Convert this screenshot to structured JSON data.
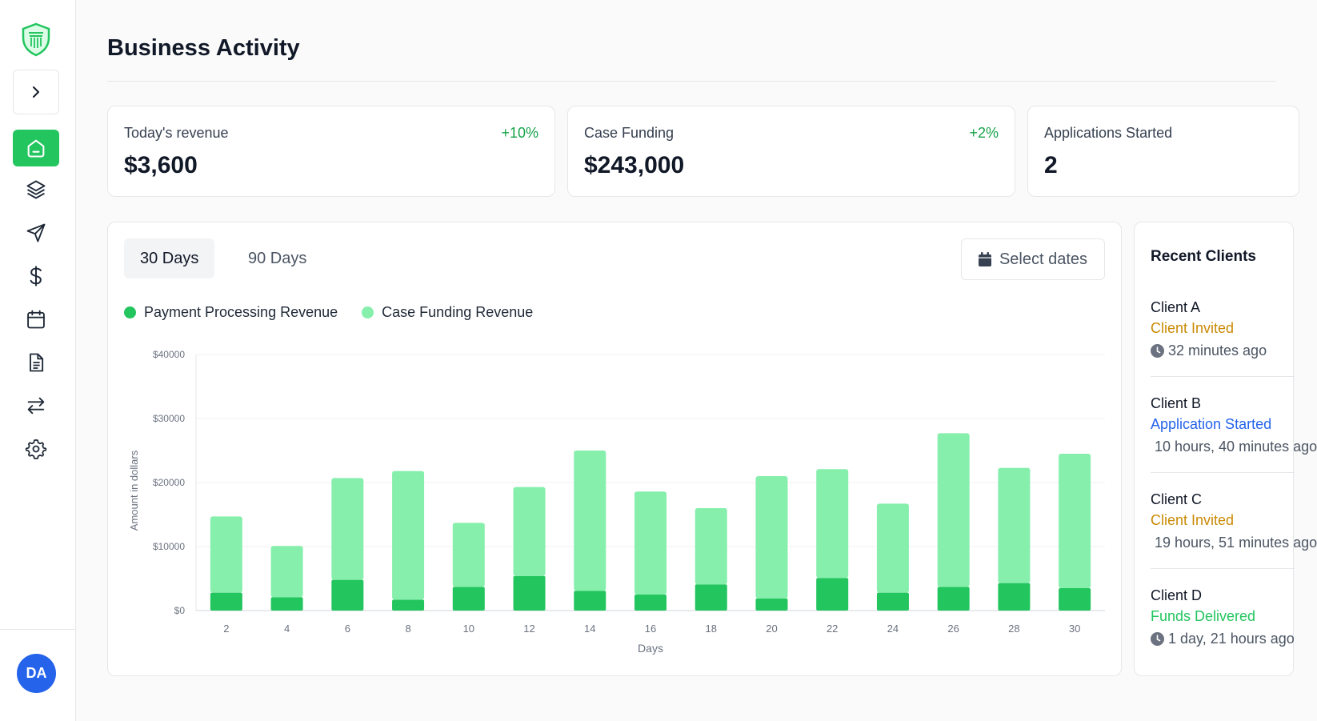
{
  "sidebar": {
    "logo_icon": "shield-pillar-icon",
    "expand_icon": "chevron-right-icon",
    "items": [
      {
        "name": "home",
        "icon": "home-icon",
        "active": true
      },
      {
        "name": "layers",
        "icon": "layers-icon",
        "active": false
      },
      {
        "name": "send",
        "icon": "send-icon",
        "active": false
      },
      {
        "name": "payments",
        "icon": "dollar-icon",
        "active": false
      },
      {
        "name": "calendar",
        "icon": "calendar-icon",
        "active": false
      },
      {
        "name": "documents",
        "icon": "document-icon",
        "active": false
      },
      {
        "name": "transfers",
        "icon": "arrows-exchange-icon",
        "active": false
      },
      {
        "name": "settings",
        "icon": "gear-icon",
        "active": false
      }
    ],
    "avatar_initials": "DA"
  },
  "header": {
    "title": "Business Activity"
  },
  "stats": [
    {
      "label": "Today's revenue",
      "value": "$3,600",
      "change": "+10%"
    },
    {
      "label": "Case Funding",
      "value": "$243,000",
      "change": "+2%"
    },
    {
      "label": "Applications Started",
      "value": "2",
      "change": ""
    }
  ],
  "chart_panel": {
    "tabs": [
      {
        "label": "30 Days",
        "active": true
      },
      {
        "label": "90 Days",
        "active": false
      }
    ],
    "select_dates_label": "Select dates",
    "legend": [
      {
        "label": "Payment Processing Revenue",
        "color": "#22c55e"
      },
      {
        "label": "Case Funding Revenue",
        "color": "#86efac"
      }
    ]
  },
  "chart_data": {
    "type": "bar",
    "stacked": true,
    "categories": [
      "2",
      "4",
      "6",
      "8",
      "10",
      "12",
      "14",
      "16",
      "18",
      "20",
      "22",
      "24",
      "26",
      "28",
      "30"
    ],
    "series": [
      {
        "name": "Payment Processing Revenue",
        "color": "#22c55e",
        "values": [
          2800,
          2100,
          4800,
          1700,
          3700,
          5400,
          3100,
          2500,
          4100,
          1900,
          5100,
          2800,
          3700,
          4300,
          3500
        ]
      },
      {
        "name": "Case Funding Revenue",
        "color": "#86efac",
        "values": [
          11900,
          8000,
          15900,
          20100,
          10000,
          13900,
          21900,
          16100,
          11900,
          19100,
          17000,
          13900,
          24000,
          18000,
          21000
        ]
      }
    ],
    "xlabel": "Days",
    "ylabel": "Amount in dollars",
    "yticks": [
      "$0",
      "$10000",
      "$20000",
      "$30000",
      "$40000"
    ],
    "ylim": [
      0,
      40000
    ],
    "grid": true
  },
  "recent_clients": {
    "title": "Recent Clients",
    "clients": [
      {
        "name": "Client A",
        "status": "Client Invited",
        "status_color": "#ca8a04",
        "time": "32 minutes ago"
      },
      {
        "name": "Client B",
        "status": "Application Started",
        "status_color": "#2563eb",
        "time": "10 hours, 40 minutes ago"
      },
      {
        "name": "Client C",
        "status": "Client Invited",
        "status_color": "#ca8a04",
        "time": "19 hours, 51 minutes ago"
      },
      {
        "name": "Client D",
        "status": "Funds Delivered",
        "status_color": "#22c55e",
        "time": "1 day, 21 hours ago"
      }
    ]
  }
}
